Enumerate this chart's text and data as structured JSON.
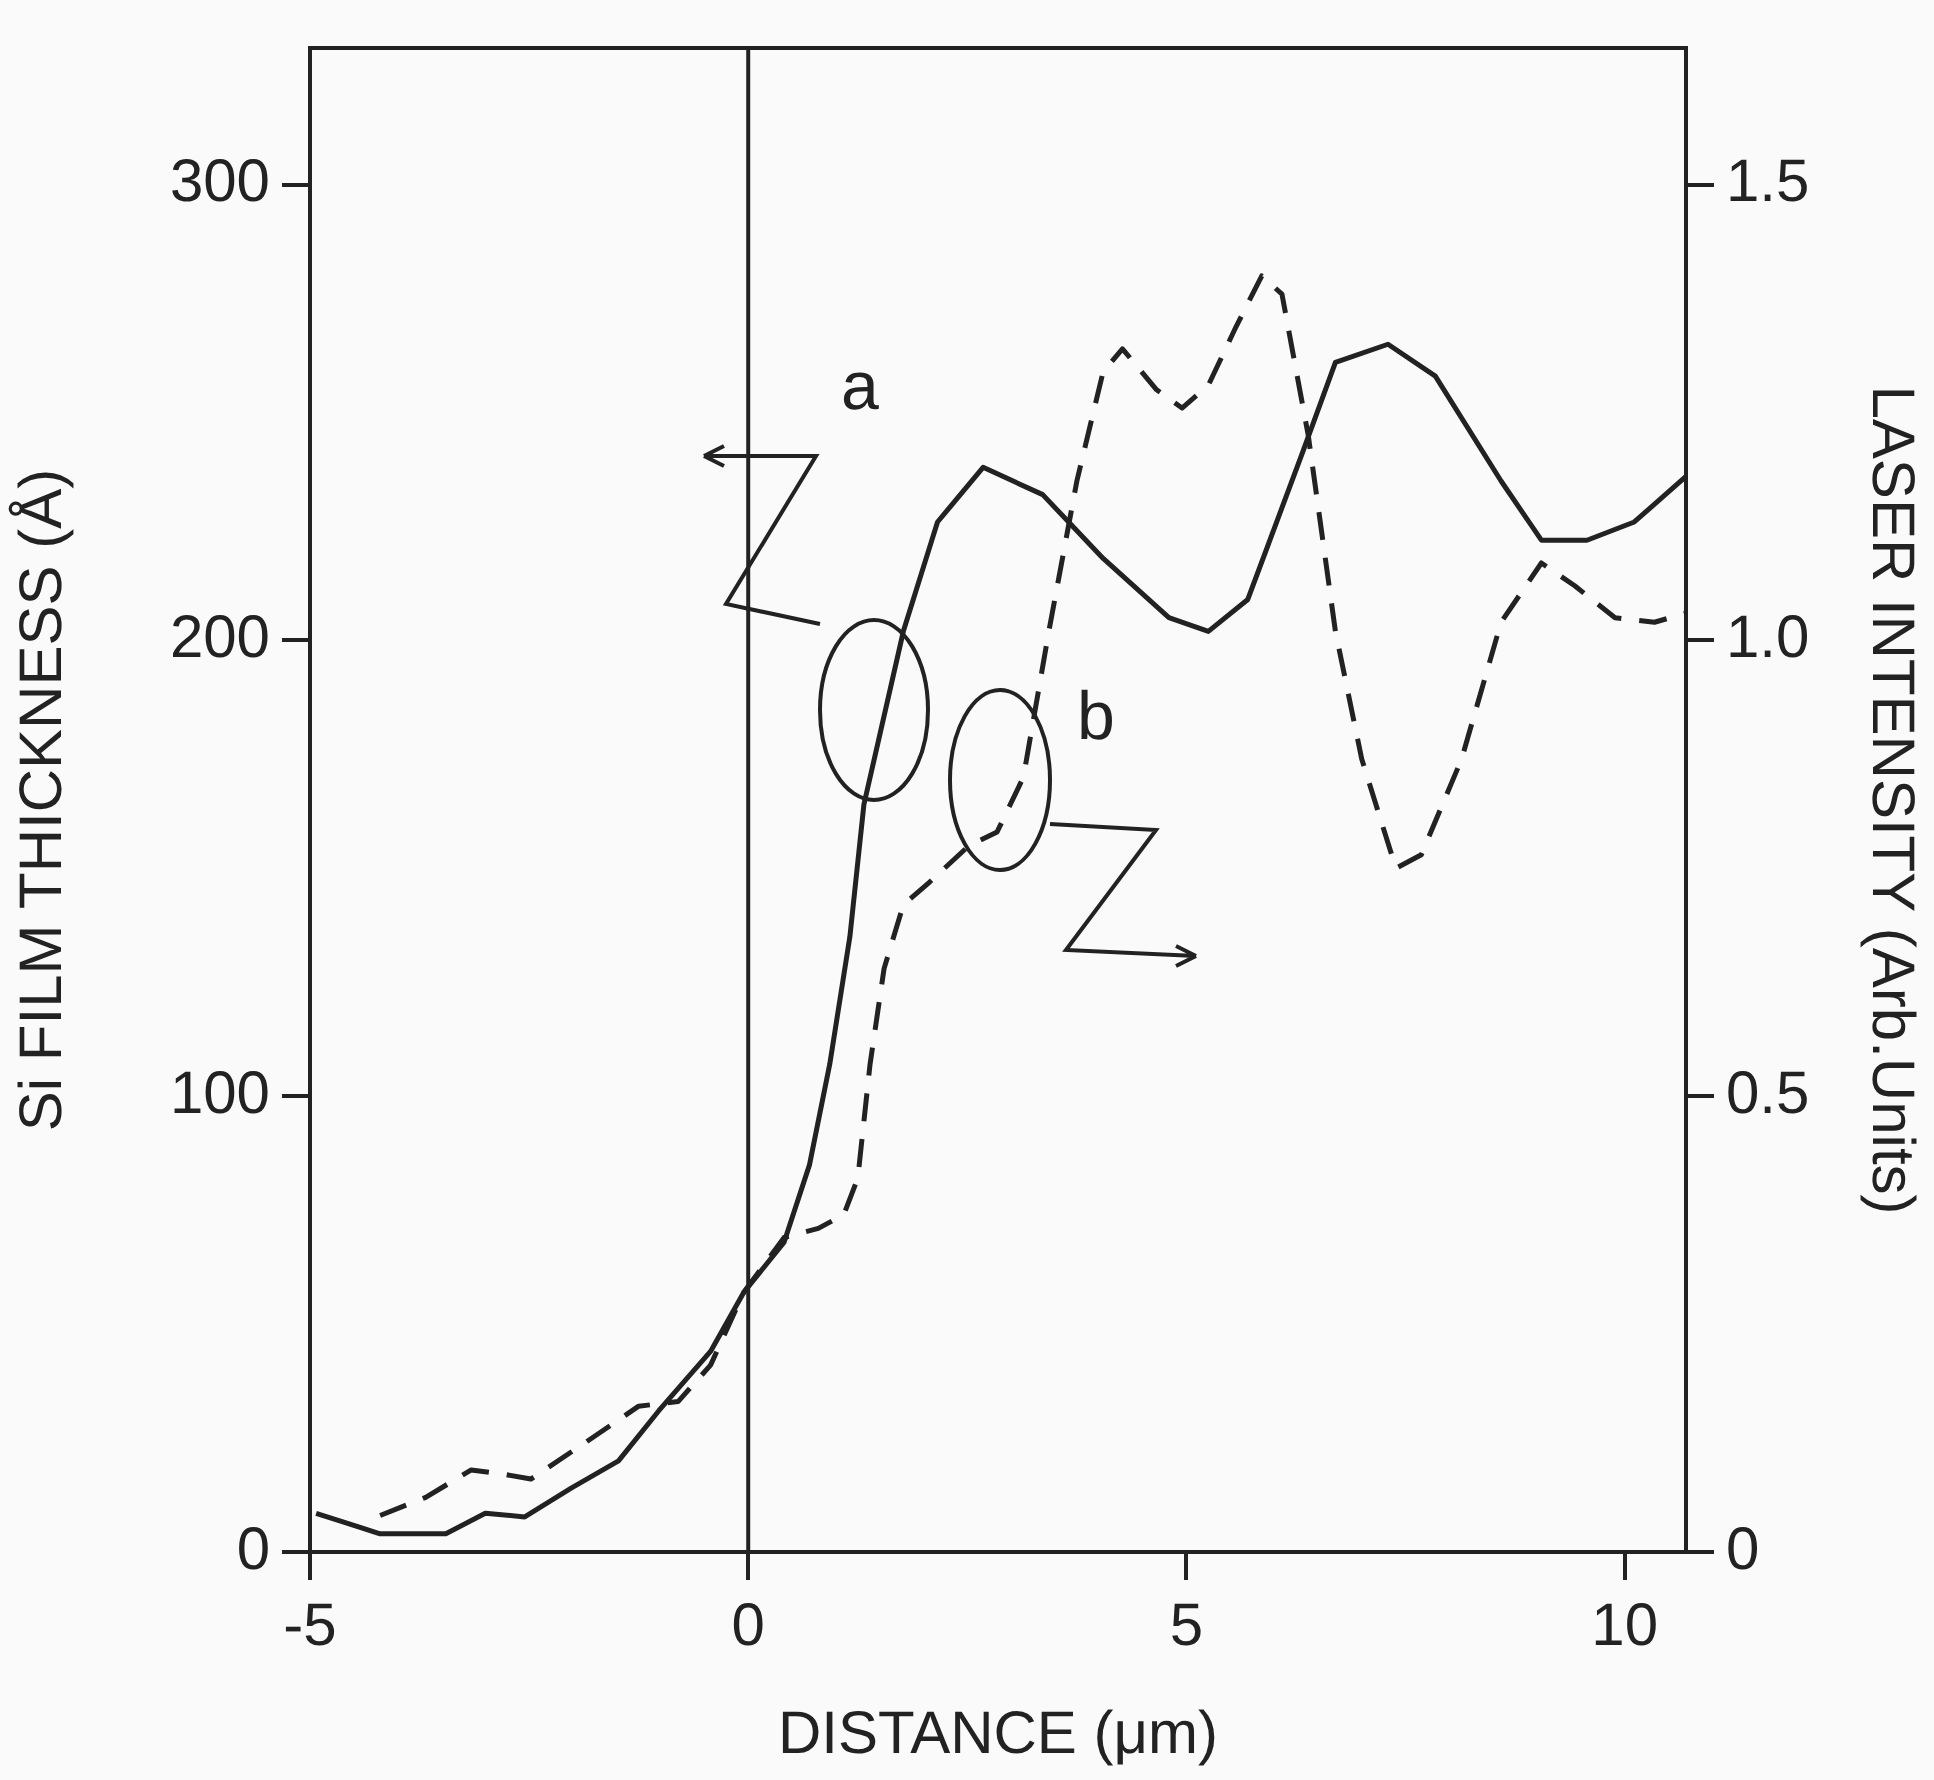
{
  "chart_data": {
    "type": "line",
    "xlabel": "DISTANCE (μm)",
    "ylabel": "Si FILM THICKNESS (Å)",
    "y2label": "LASER INTENSITY (Arb.Units)",
    "xlim": [
      -5,
      10.7
    ],
    "xticks": [
      -5,
      0,
      5,
      10
    ],
    "ylim": [
      0,
      330
    ],
    "yticks": [
      0,
      100,
      200,
      300
    ],
    "y2lim": [
      0,
      1.65
    ],
    "y2ticks": [
      0,
      0.5,
      {
        "value": 1,
        "label": "1.0"
      },
      1.5
    ],
    "grid": false,
    "legend": false,
    "marker": "none",
    "ref_lines": [
      {
        "axis": "x",
        "value": 0,
        "color": "#222222"
      }
    ],
    "series": [
      {
        "name": "a",
        "color": "#222222",
        "line_style": "solid",
        "x": [
          -4.93,
          -4.2,
          -3.45,
          -3.0,
          -2.55,
          -2.02,
          -1.48,
          -1.02,
          -0.43,
          -0.05,
          0.41,
          0.7,
          0.93,
          1.16,
          1.32,
          1.77,
          2.16,
          2.68,
          3.36,
          4.05,
          4.8,
          5.25,
          5.7,
          6.32,
          6.7,
          7.3,
          7.84,
          8.59,
          9.05,
          9.57,
          10.11,
          10.7
        ],
        "values": [
          8.5,
          4,
          4,
          8.5,
          7.7,
          14,
          20,
          31,
          44,
          57,
          68,
          85,
          107,
          135,
          164,
          202,
          226,
          238,
          232,
          218,
          205,
          202,
          209,
          241,
          261,
          265,
          258,
          235,
          222,
          222,
          226,
          236
        ]
      },
      {
        "name": "b",
        "color": "#222222",
        "line_style": "dashed",
        "axis": "y2",
        "x": [
          -4.2,
          -3.68,
          -3.16,
          -2.77,
          -2.48,
          -1.86,
          -1.25,
          -0.8,
          -0.43,
          -0.05,
          0.41,
          0.8,
          1.09,
          1.25,
          1.39,
          1.55,
          1.77,
          2.07,
          2.52,
          2.84,
          3.14,
          3.43,
          3.75,
          4.05,
          4.27,
          4.66,
          4.95,
          5.25,
          5.57,
          5.86,
          6.09,
          6.39,
          6.7,
          7.0,
          7.39,
          7.68,
          8.14,
          8.59,
          9.05,
          9.43,
          9.89,
          10.34,
          10.7
        ],
        "values": [
          0.04,
          0.06,
          0.09,
          0.085,
          0.08,
          0.12,
          0.16,
          0.165,
          0.205,
          0.285,
          0.345,
          0.355,
          0.37,
          0.41,
          0.535,
          0.64,
          0.71,
          0.735,
          0.775,
          0.79,
          0.85,
          1.01,
          1.175,
          1.295,
          1.32,
          1.275,
          1.255,
          1.28,
          1.345,
          1.4,
          1.38,
          1.225,
          1.01,
          0.87,
          0.75,
          0.765,
          0.87,
          1.02,
          1.085,
          1.06,
          1.025,
          1.02,
          1.03
        ]
      }
    ]
  }
}
